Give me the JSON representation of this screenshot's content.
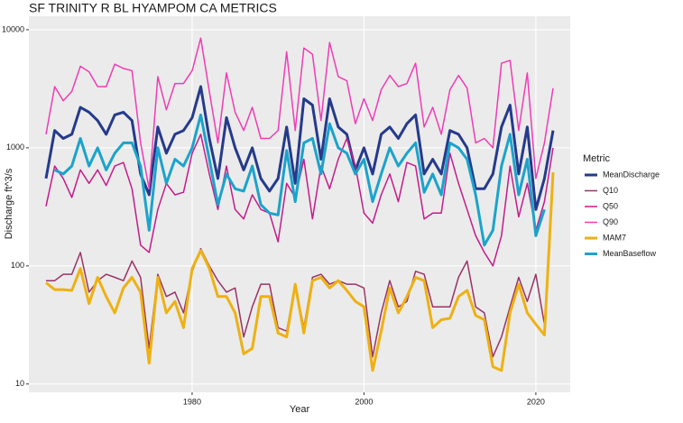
{
  "chart_data": {
    "type": "line",
    "title": "SF TRINITY R BL HYAMPOM CA  METRICS",
    "x_label": "Year",
    "y_label": "Discharge ft^3/s",
    "legend_title": "Metric",
    "legend": "right",
    "log_y": true,
    "grid": true,
    "xlim": [
      1961,
      2024
    ],
    "xticks": [
      1980,
      2000,
      2020
    ],
    "ylim": [
      8.5,
      13000
    ],
    "yticks": [
      10,
      100,
      1000,
      10000
    ],
    "x": [
      1963,
      1964,
      1965,
      1966,
      1967,
      1968,
      1969,
      1970,
      1971,
      1972,
      1973,
      1974,
      1975,
      1976,
      1977,
      1978,
      1979,
      1980,
      1981,
      1982,
      1983,
      1984,
      1985,
      1986,
      1987,
      1988,
      1989,
      1990,
      1991,
      1992,
      1993,
      1994,
      1995,
      1996,
      1997,
      1998,
      1999,
      2000,
      2001,
      2002,
      2003,
      2004,
      2005,
      2006,
      2007,
      2008,
      2009,
      2010,
      2011,
      2012,
      2013,
      2014,
      2015,
      2016,
      2017,
      2018,
      2019,
      2020,
      2021,
      2022
    ],
    "series": [
      {
        "name": "MeanDischarge",
        "color": "#253a8c",
        "width": 3,
        "values": [
          550,
          1400,
          1200,
          1300,
          2200,
          2000,
          1700,
          1300,
          1900,
          2000,
          1700,
          600,
          400,
          1500,
          900,
          1300,
          1400,
          1800,
          3300,
          1200,
          550,
          1800,
          1000,
          650,
          1000,
          550,
          430,
          550,
          1500,
          500,
          2600,
          2300,
          800,
          2600,
          1500,
          1300,
          650,
          1000,
          600,
          1300,
          1500,
          1200,
          1600,
          1900,
          600,
          800,
          600,
          1400,
          1300,
          1000,
          450,
          450,
          600,
          1500,
          2300,
          600,
          1500,
          300,
          550,
          1400
        ]
      },
      {
        "name": "Q10",
        "color": "#993366",
        "width": 1.5,
        "values": [
          75,
          75,
          85,
          85,
          130,
          60,
          75,
          85,
          80,
          75,
          110,
          80,
          20,
          85,
          55,
          60,
          40,
          90,
          140,
          100,
          75,
          60,
          65,
          25,
          45,
          70,
          70,
          30,
          28,
          70,
          30,
          80,
          85,
          70,
          75,
          70,
          70,
          65,
          17,
          40,
          75,
          45,
          50,
          90,
          85,
          45,
          45,
          45,
          80,
          110,
          45,
          40,
          17,
          25,
          45,
          80,
          50,
          85,
          32,
          null
        ]
      },
      {
        "name": "Q50",
        "color": "#c51b8a",
        "width": 1.5,
        "values": [
          320,
          700,
          550,
          380,
          650,
          500,
          650,
          480,
          700,
          750,
          450,
          150,
          130,
          300,
          500,
          400,
          420,
          900,
          1300,
          600,
          300,
          700,
          300,
          250,
          400,
          300,
          280,
          160,
          500,
          380,
          800,
          250,
          700,
          450,
          800,
          1200,
          700,
          280,
          230,
          400,
          600,
          350,
          750,
          700,
          250,
          280,
          280,
          900,
          500,
          300,
          180,
          130,
          100,
          180,
          700,
          260,
          500,
          200,
          350,
          1000
        ]
      },
      {
        "name": "Q90",
        "color": "#f03cb4",
        "width": 1.5,
        "values": [
          1300,
          3300,
          2500,
          3000,
          4900,
          4400,
          3300,
          3300,
          5100,
          4700,
          4500,
          1100,
          450,
          4000,
          2100,
          3500,
          3500,
          4500,
          8500,
          3000,
          1100,
          4300,
          2000,
          1400,
          2200,
          1200,
          1200,
          1400,
          6500,
          1400,
          7000,
          6200,
          1700,
          7800,
          4000,
          3700,
          1600,
          2600,
          1700,
          3100,
          4100,
          3300,
          3500,
          5200,
          1500,
          2200,
          1300,
          3100,
          4100,
          3200,
          1100,
          1200,
          1000,
          5200,
          5500,
          1400,
          4300,
          550,
          1100,
          3200
        ]
      },
      {
        "name": "MAM7",
        "color": "#eeb111",
        "width": 3,
        "values": [
          72,
          63,
          63,
          62,
          95,
          48,
          80,
          55,
          40,
          65,
          80,
          60,
          15,
          80,
          40,
          50,
          30,
          95,
          135,
          95,
          55,
          55,
          40,
          18,
          20,
          55,
          55,
          27,
          25,
          70,
          27,
          75,
          80,
          65,
          75,
          62,
          50,
          45,
          13,
          28,
          65,
          40,
          55,
          80,
          75,
          30,
          35,
          36,
          55,
          62,
          38,
          35,
          14,
          13,
          40,
          70,
          40,
          32,
          26,
          620
        ]
      },
      {
        "name": "MeanBaseflow",
        "color": "#1ba3cc",
        "width": 3,
        "values": [
          null,
          650,
          600,
          700,
          1200,
          700,
          1000,
          650,
          900,
          1100,
          1100,
          700,
          200,
          1000,
          500,
          800,
          700,
          1000,
          1900,
          800,
          330,
          600,
          450,
          430,
          700,
          330,
          280,
          270,
          950,
          350,
          1100,
          1200,
          600,
          1600,
          1000,
          900,
          600,
          800,
          350,
          600,
          1000,
          700,
          900,
          1100,
          420,
          600,
          400,
          1100,
          1000,
          800,
          400,
          150,
          200,
          700,
          1300,
          400,
          800,
          180,
          300,
          null
        ]
      }
    ]
  }
}
